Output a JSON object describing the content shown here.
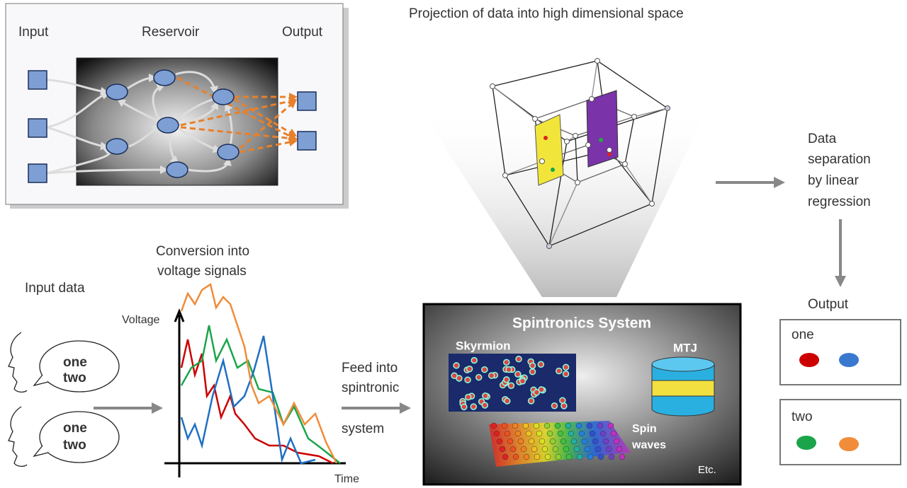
{
  "reservoir_panel": {
    "input_label": "Input",
    "reservoir_label": "Reservoir",
    "output_label": "Output"
  },
  "projection": {
    "title": "Projection of data into high dimensional space"
  },
  "separation": {
    "lines": [
      "Data",
      "separation",
      "by linear",
      "regression"
    ]
  },
  "output": {
    "title": "Output",
    "boxes": [
      {
        "label": "one"
      },
      {
        "label": "two"
      }
    ]
  },
  "input_data": {
    "title": "Input data",
    "bubbles": [
      {
        "first": "one",
        "second": "two"
      },
      {
        "first": "one",
        "second": "two"
      }
    ]
  },
  "conversion": {
    "lines": [
      "Conversion into",
      "voltage signals"
    ],
    "y_axis": "Voltage",
    "x_axis": "Time"
  },
  "feed": {
    "lines": [
      "Feed into",
      "spintronic",
      "system"
    ]
  },
  "spintronics": {
    "title": "Spintronics System",
    "skyrmion": "Skyrmion",
    "mtj": "MTJ",
    "spin_waves": [
      "Spin",
      "waves"
    ],
    "etc": "Etc."
  }
}
